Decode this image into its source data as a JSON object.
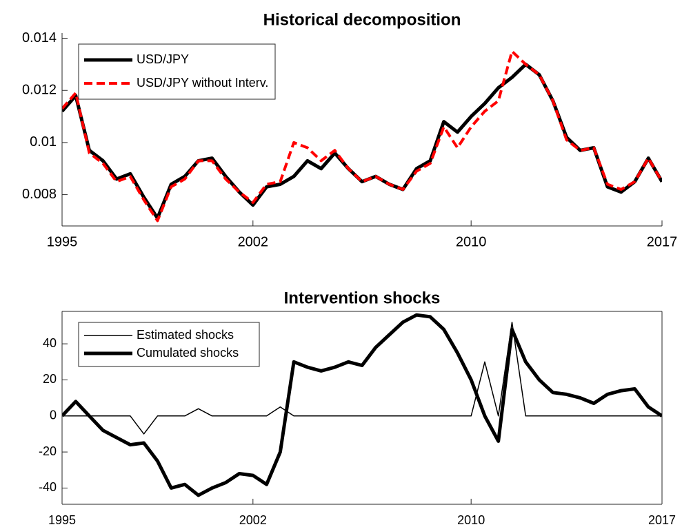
{
  "chart_data": [
    {
      "type": "line",
      "title": "Historical decomposition",
      "legend": "upper left",
      "x": [
        1995,
        1995.5,
        1996,
        1996.5,
        1997,
        1997.5,
        1998,
        1998.5,
        1999,
        1999.5,
        2000,
        2000.5,
        2001,
        2001.5,
        2002,
        2002.5,
        2003,
        2003.5,
        2004,
        2004.5,
        2005,
        2005.5,
        2006,
        2006.5,
        2007,
        2007.5,
        2008,
        2008.5,
        2009,
        2009.5,
        2010,
        2010.5,
        2011,
        2011.5,
        2012,
        2012.5,
        2013,
        2013.5,
        2014,
        2014.5,
        2015,
        2015.5,
        2016,
        2016.5,
        2017
      ],
      "series": [
        {
          "name": "USD/JPY",
          "color": "#000000",
          "line_width": 5,
          "line_style": "solid",
          "values": [
            0.0112,
            0.0118,
            0.0097,
            0.0093,
            0.0086,
            0.0088,
            0.0079,
            0.0071,
            0.0084,
            0.0087,
            0.0093,
            0.0094,
            0.0087,
            0.0081,
            0.0076,
            0.0083,
            0.0084,
            0.0087,
            0.0093,
            0.009,
            0.0096,
            0.009,
            0.0085,
            0.0087,
            0.0084,
            0.0082,
            0.009,
            0.0093,
            0.0108,
            0.0104,
            0.011,
            0.0115,
            0.0121,
            0.0125,
            0.013,
            0.0126,
            0.0116,
            0.0102,
            0.0097,
            0.0098,
            0.0083,
            0.0081,
            0.0085,
            0.0094,
            0.0085
          ]
        },
        {
          "name": "USD/JPY without Interv.",
          "color": "#ff0000",
          "line_width": 4,
          "line_style": "dashed",
          "values": [
            0.0113,
            0.0119,
            0.0096,
            0.0092,
            0.0085,
            0.0087,
            0.0078,
            0.007,
            0.0083,
            0.0086,
            0.0093,
            0.0093,
            0.0086,
            0.0081,
            0.0077,
            0.0084,
            0.0085,
            0.01,
            0.0098,
            0.0093,
            0.0097,
            0.009,
            0.0085,
            0.0087,
            0.0084,
            0.0082,
            0.0089,
            0.0092,
            0.0106,
            0.0098,
            0.0106,
            0.0112,
            0.0116,
            0.0135,
            0.013,
            0.0126,
            0.0116,
            0.0101,
            0.0097,
            0.0098,
            0.0084,
            0.0082,
            0.0085,
            0.0094,
            0.0085
          ]
        }
      ],
      "xlim": [
        1995,
        2017
      ],
      "xticks": [
        1995,
        2002,
        2010,
        2017
      ],
      "ylim": [
        0.0068,
        0.0142
      ],
      "yticks": [
        0.008,
        0.01,
        0.012,
        0.014
      ]
    },
    {
      "type": "line",
      "title": "Intervention shocks",
      "legend": "upper left",
      "x": [
        1995,
        1995.5,
        1996,
        1996.5,
        1997,
        1997.5,
        1998,
        1998.5,
        1999,
        1999.5,
        2000,
        2000.5,
        2001,
        2001.5,
        2002,
        2002.5,
        2003,
        2003.5,
        2004,
        2004.5,
        2005,
        2005.5,
        2006,
        2006.5,
        2007,
        2007.5,
        2008,
        2008.5,
        2009,
        2009.5,
        2010,
        2010.5,
        2011,
        2011.5,
        2012,
        2012.5,
        2013,
        2013.5,
        2014,
        2014.5,
        2015,
        2015.5,
        2016,
        2016.5,
        2017
      ],
      "series": [
        {
          "name": "Estimated shocks",
          "color": "#000000",
          "line_width": 1.5,
          "line_style": "solid",
          "values": [
            0,
            0,
            0,
            0,
            0,
            0,
            -10,
            0,
            0,
            0,
            4,
            0,
            0,
            0,
            0,
            0,
            5,
            0,
            0,
            0,
            0,
            0,
            0,
            0,
            0,
            0,
            0,
            0,
            0,
            0,
            0,
            30,
            0,
            52,
            0,
            0,
            0,
            0,
            0,
            0,
            0,
            0,
            0,
            0,
            0
          ]
        },
        {
          "name": "Cumulated shocks",
          "color": "#000000",
          "line_width": 5,
          "line_style": "solid",
          "values": [
            0,
            8,
            0,
            -8,
            -12,
            -16,
            -15,
            -25,
            -40,
            -38,
            -44,
            -40,
            -37,
            -32,
            -33,
            -38,
            -20,
            30,
            27,
            25,
            27,
            30,
            28,
            38,
            45,
            52,
            56,
            55,
            48,
            35,
            20,
            0,
            -14,
            48,
            30,
            20,
            13,
            12,
            10,
            7,
            12,
            14,
            15,
            5,
            0
          ]
        }
      ],
      "xlim": [
        1995,
        2017
      ],
      "xticks": [
        1995,
        2002,
        2010,
        2017
      ],
      "ylim": [
        -49,
        58
      ],
      "yticks": [
        -40,
        -20,
        0,
        20,
        40
      ]
    }
  ]
}
